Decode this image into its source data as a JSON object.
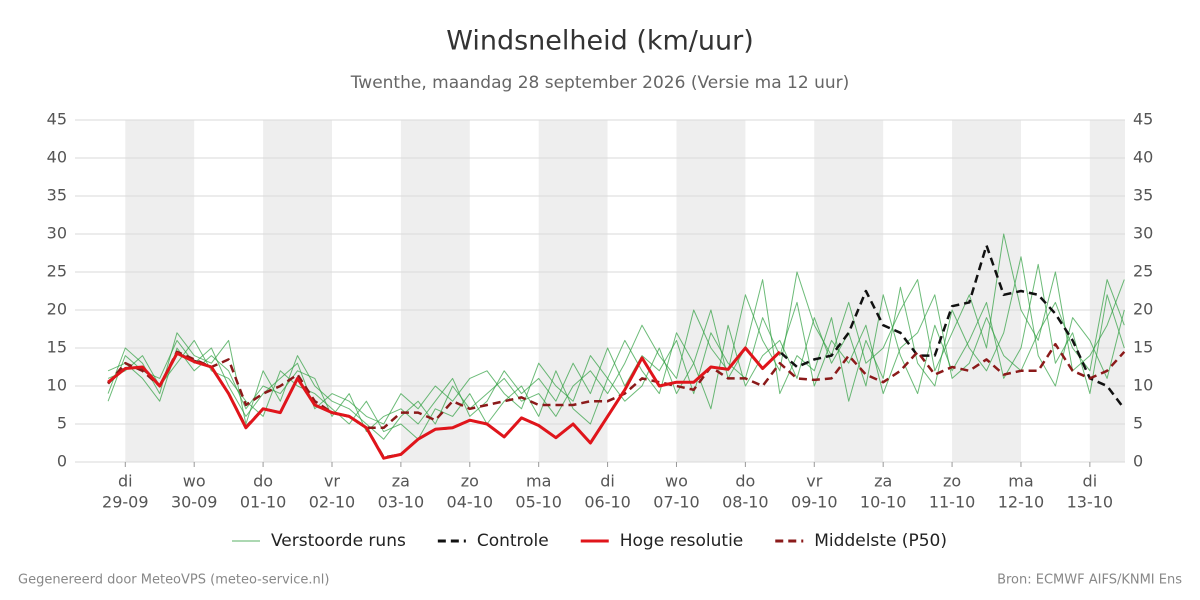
{
  "chart_data": {
    "type": "line",
    "title": "Windsnelheid (km/uur)",
    "subtitle": "Twenthe, maandag 28 september 2026 (Versie ma 12 uur)",
    "footer_left": "Gegenereerd door MeteoVPS (meteo-service.nl)",
    "footer_right": "Bron: ECMWF AIFS/KNMI Ens",
    "xlim": [
      -0.73,
      14.51
    ],
    "xticks": [
      {
        "value": 0,
        "label": "di",
        "date": "29-09"
      },
      {
        "value": 1,
        "label": "wo",
        "date": "30-09"
      },
      {
        "value": 2,
        "label": "do",
        "date": "01-10"
      },
      {
        "value": 3,
        "label": "vr",
        "date": "02-10"
      },
      {
        "value": 4,
        "label": "za",
        "date": "03-10"
      },
      {
        "value": 5,
        "label": "zo",
        "date": "04-10"
      },
      {
        "value": 6,
        "label": "ma",
        "date": "05-10"
      },
      {
        "value": 7,
        "label": "di",
        "date": "06-10"
      },
      {
        "value": 8,
        "label": "wo",
        "date": "07-10"
      },
      {
        "value": 9,
        "label": "do",
        "date": "08-10"
      },
      {
        "value": 10,
        "label": "vr",
        "date": "09-10"
      },
      {
        "value": 11,
        "label": "za",
        "date": "10-10"
      },
      {
        "value": 12,
        "label": "zo",
        "date": "11-10"
      },
      {
        "value": 13,
        "label": "ma",
        "date": "12-10"
      },
      {
        "value": 14,
        "label": "di",
        "date": "13-10"
      }
    ],
    "ylim": [
      0,
      45
    ],
    "yticks": [
      0,
      5,
      10,
      15,
      20,
      25,
      30,
      35,
      40,
      45
    ],
    "grid": true,
    "x": [
      -0.25,
      0,
      0.25,
      0.5,
      0.75,
      1,
      1.25,
      1.5,
      1.75,
      2,
      2.25,
      2.5,
      2.75,
      3,
      3.25,
      3.5,
      3.75,
      4,
      4.25,
      4.5,
      4.75,
      5,
      5.25,
      5.5,
      5.75,
      6,
      6.25,
      6.5,
      6.75,
      7,
      7.25,
      7.5,
      7.75,
      8,
      8.25,
      8.5,
      8.75,
      9,
      9.25,
      9.5,
      9.75,
      10,
      10.25,
      10.5,
      10.75,
      11,
      11.25,
      11.5,
      11.75,
      12,
      12.25,
      12.5,
      12.75,
      13,
      13.25,
      13.5,
      13.75,
      14,
      14.25,
      14.5
    ],
    "ensemble": {
      "name": "Verstoorde runs",
      "color": "#2e9e3e",
      "members": [
        [
          9,
          15,
          13,
          9,
          17,
          14,
          13,
          16,
          5,
          12,
          8,
          14,
          10,
          8,
          7,
          5,
          3,
          6,
          8,
          5,
          10,
          7,
          9,
          11,
          8,
          9,
          6,
          10,
          12,
          9,
          13,
          18,
          14,
          11,
          20,
          15,
          12,
          22,
          16,
          12,
          25,
          18,
          14,
          21,
          13,
          15,
          20,
          24,
          12,
          17,
          22,
          15,
          30,
          20,
          16,
          25,
          12,
          14,
          18,
          24
        ],
        [
          11,
          12,
          14,
          10,
          13,
          16,
          12,
          11,
          8,
          6,
          12,
          10,
          9,
          7,
          5,
          8,
          4,
          5,
          3,
          7,
          6,
          9,
          5,
          8,
          10,
          6,
          12,
          7,
          5,
          11,
          8,
          10,
          15,
          9,
          13,
          7,
          18,
          10,
          14,
          16,
          11,
          19,
          13,
          17,
          10,
          22,
          14,
          9,
          18,
          12,
          16,
          21,
          11,
          15,
          26,
          13,
          17,
          9,
          22,
          15
        ],
        [
          8,
          14,
          12,
          11,
          16,
          13,
          15,
          10,
          6,
          9,
          11,
          13,
          7,
          9,
          8,
          6,
          5,
          9,
          7,
          10,
          8,
          11,
          12,
          9,
          7,
          13,
          10,
          8,
          14,
          11,
          16,
          12,
          9,
          17,
          13,
          20,
          11,
          15,
          24,
          9,
          14,
          12,
          19,
          8,
          16,
          11,
          23,
          13,
          10,
          20,
          15,
          12,
          17,
          27,
          14,
          10,
          19,
          16,
          11,
          20
        ],
        [
          12,
          13,
          11,
          8,
          15,
          12,
          14,
          12,
          7,
          10,
          9,
          12,
          11,
          6,
          9,
          4,
          6,
          7,
          5,
          8,
          11,
          6,
          8,
          12,
          9,
          11,
          8,
          13,
          9,
          15,
          10,
          14,
          12,
          16,
          9,
          17,
          13,
          11,
          19,
          14,
          21,
          10,
          16,
          13,
          18,
          9,
          15,
          17,
          22,
          11,
          13,
          19,
          14,
          12,
          17,
          21,
          15,
          12,
          24,
          18
        ]
      ]
    },
    "series": [
      {
        "name": "Controle",
        "color": "#111111",
        "dashed": true,
        "values": [
          10.4,
          12.4,
          12.4,
          10,
          14.3,
          13.3,
          12.5,
          9,
          4.6,
          7,
          6.5,
          11,
          7.5,
          6.5,
          6,
          4.5,
          0.6,
          1,
          3,
          4.3,
          4.5,
          5.5,
          5,
          3.3,
          5.8,
          4.8,
          3.2,
          5,
          2.5,
          6,
          9.5,
          13.7,
          10,
          10.5,
          10.5,
          12.5,
          12.2,
          15,
          12.3,
          14.5,
          12.5,
          13.5,
          14,
          17,
          22.5,
          18,
          17,
          14,
          14,
          20.5,
          21,
          28.5,
          22,
          22.5,
          22,
          19.5,
          16,
          11,
          10,
          7
        ]
      },
      {
        "name": "Middelste (P50)",
        "color": "#8b1a1a",
        "dashed": true,
        "values": [
          10.3,
          13,
          12,
          10,
          14.5,
          13.5,
          12.5,
          13.5,
          7.5,
          9,
          10,
          11.5,
          8,
          6.5,
          6,
          4.5,
          4.5,
          6.5,
          6.5,
          5.5,
          8,
          7,
          7.5,
          8,
          8.5,
          7.5,
          7.5,
          7.5,
          8,
          8,
          9,
          11,
          10.5,
          10,
          9.5,
          12.5,
          11,
          11,
          10,
          13,
          11,
          10.8,
          11,
          14,
          11.5,
          10.5,
          12,
          14.5,
          11.5,
          12.5,
          12,
          13.5,
          11.5,
          12,
          12,
          15.5,
          12,
          11,
          12,
          14.5
        ]
      },
      {
        "name": "Hoge resolutie",
        "color": "#e0151b",
        "dashed": false,
        "values": [
          10.5,
          12.3,
          12.5,
          10,
          14.3,
          13.2,
          12.5,
          9,
          4.5,
          7,
          6.5,
          11,
          7.5,
          6.5,
          6,
          4.5,
          0.5,
          1,
          3,
          4.3,
          4.5,
          5.5,
          5,
          3.3,
          5.8,
          4.8,
          3.2,
          5,
          2.5,
          6,
          9.5,
          13.7,
          10,
          10.5,
          10.5,
          12.5,
          12.2,
          15,
          12.3,
          14.5,
          null,
          null,
          null,
          null,
          null,
          null,
          null,
          null,
          null,
          null,
          null,
          null,
          null,
          null,
          null,
          null,
          null,
          null,
          null,
          null
        ]
      }
    ]
  }
}
